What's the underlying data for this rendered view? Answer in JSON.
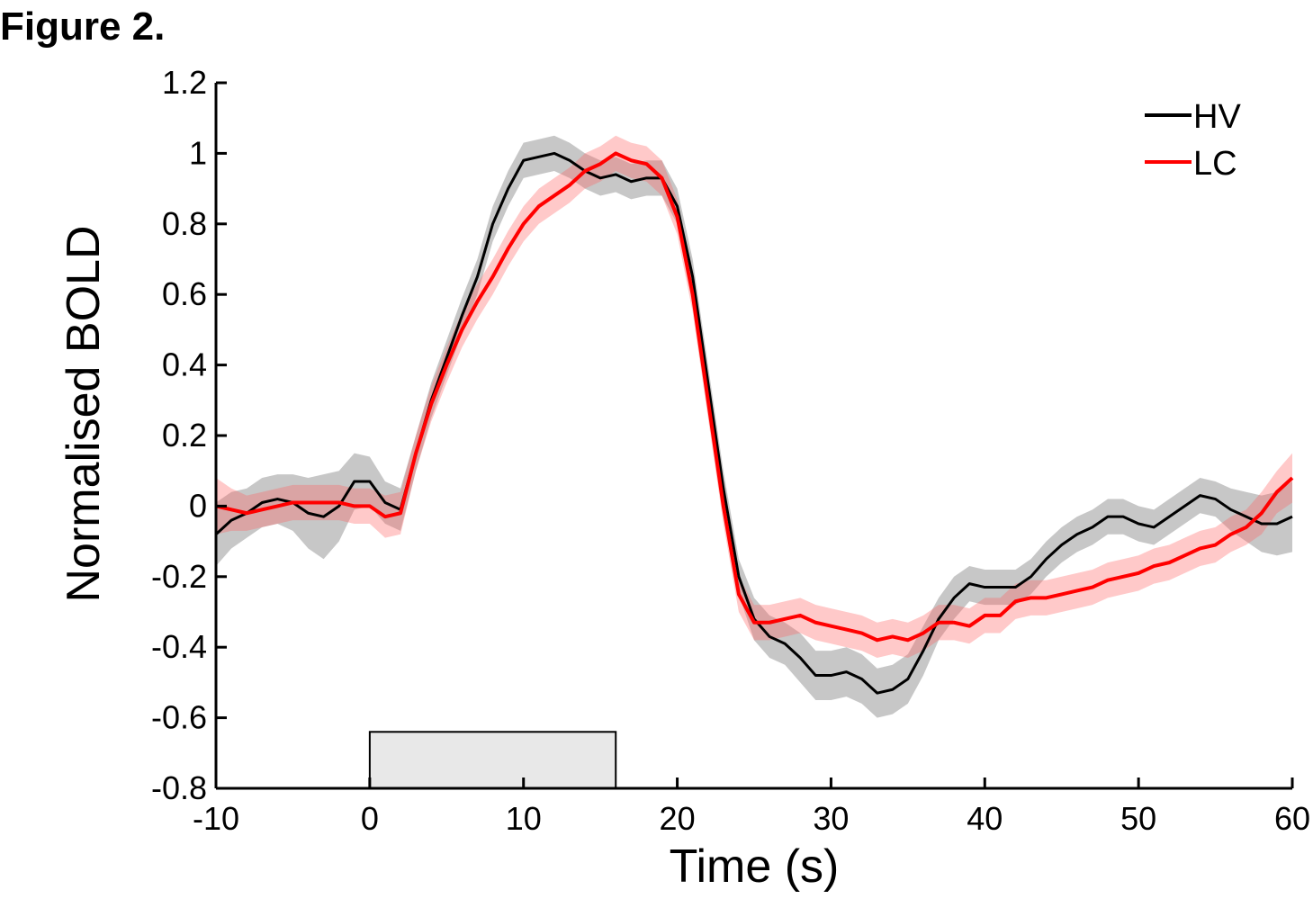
{
  "chart_data": {
    "type": "line",
    "figure_label": "Figure 2.",
    "xlabel": "Time (s)",
    "ylabel": "Normalised BOLD",
    "x": [
      -10,
      -9,
      -8,
      -7,
      -6,
      -5,
      -4,
      -3,
      -2,
      -1,
      0,
      1,
      2,
      3,
      4,
      5,
      6,
      7,
      8,
      9,
      10,
      11,
      12,
      13,
      14,
      15,
      16,
      17,
      18,
      19,
      20,
      21,
      22,
      23,
      24,
      25,
      26,
      27,
      28,
      29,
      30,
      31,
      32,
      33,
      34,
      35,
      36,
      37,
      38,
      39,
      40,
      41,
      42,
      43,
      44,
      45,
      46,
      47,
      48,
      49,
      50,
      51,
      52,
      53,
      54,
      55,
      56,
      57,
      58,
      59,
      60
    ],
    "series": [
      {
        "name": "HV",
        "color": "#000000",
        "band_color": "rgba(130,130,130,0.45)",
        "values": [
          -0.08,
          -0.04,
          -0.02,
          0.01,
          0.02,
          0.01,
          -0.02,
          -0.03,
          0.0,
          0.07,
          0.07,
          0.01,
          -0.01,
          0.15,
          0.3,
          0.42,
          0.54,
          0.65,
          0.8,
          0.9,
          0.98,
          0.99,
          1.0,
          0.98,
          0.95,
          0.93,
          0.94,
          0.92,
          0.93,
          0.93,
          0.85,
          0.65,
          0.35,
          0.05,
          -0.2,
          -0.32,
          -0.37,
          -0.39,
          -0.43,
          -0.48,
          -0.48,
          -0.47,
          -0.49,
          -0.53,
          -0.52,
          -0.49,
          -0.41,
          -0.32,
          -0.26,
          -0.22,
          -0.23,
          -0.23,
          -0.23,
          -0.2,
          -0.15,
          -0.11,
          -0.08,
          -0.06,
          -0.03,
          -0.03,
          -0.05,
          -0.06,
          -0.03,
          0.0,
          0.03,
          0.02,
          -0.01,
          -0.03,
          -0.05,
          -0.05,
          -0.03
        ],
        "error": [
          0.09,
          0.08,
          0.07,
          0.07,
          0.07,
          0.08,
          0.1,
          0.12,
          0.1,
          0.08,
          0.07,
          0.06,
          0.06,
          0.05,
          0.05,
          0.05,
          0.05,
          0.05,
          0.05,
          0.05,
          0.05,
          0.05,
          0.05,
          0.05,
          0.05,
          0.05,
          0.05,
          0.05,
          0.05,
          0.05,
          0.05,
          0.05,
          0.05,
          0.05,
          0.05,
          0.06,
          0.06,
          0.06,
          0.07,
          0.07,
          0.07,
          0.07,
          0.07,
          0.07,
          0.07,
          0.07,
          0.07,
          0.06,
          0.06,
          0.05,
          0.05,
          0.05,
          0.05,
          0.05,
          0.05,
          0.05,
          0.05,
          0.05,
          0.05,
          0.05,
          0.05,
          0.05,
          0.05,
          0.05,
          0.05,
          0.05,
          0.06,
          0.07,
          0.08,
          0.09,
          0.1
        ]
      },
      {
        "name": "LC",
        "color": "#ff0000",
        "band_color": "rgba(255,100,100,0.35)",
        "values": [
          0.0,
          -0.01,
          -0.02,
          -0.01,
          0.0,
          0.01,
          0.01,
          0.01,
          0.01,
          0.0,
          0.0,
          -0.03,
          -0.02,
          0.15,
          0.29,
          0.4,
          0.5,
          0.58,
          0.65,
          0.73,
          0.8,
          0.85,
          0.88,
          0.91,
          0.95,
          0.97,
          1.0,
          0.98,
          0.97,
          0.93,
          0.82,
          0.6,
          0.3,
          0.0,
          -0.25,
          -0.33,
          -0.33,
          -0.32,
          -0.31,
          -0.33,
          -0.34,
          -0.35,
          -0.36,
          -0.38,
          -0.37,
          -0.38,
          -0.36,
          -0.33,
          -0.33,
          -0.34,
          -0.31,
          -0.31,
          -0.27,
          -0.26,
          -0.26,
          -0.25,
          -0.24,
          -0.23,
          -0.21,
          -0.2,
          -0.19,
          -0.17,
          -0.16,
          -0.14,
          -0.12,
          -0.11,
          -0.08,
          -0.06,
          -0.02,
          0.04,
          0.08
        ],
        "error": [
          0.08,
          0.06,
          0.05,
          0.05,
          0.05,
          0.05,
          0.05,
          0.05,
          0.05,
          0.05,
          0.05,
          0.06,
          0.06,
          0.05,
          0.05,
          0.05,
          0.05,
          0.05,
          0.05,
          0.05,
          0.05,
          0.05,
          0.05,
          0.05,
          0.05,
          0.05,
          0.05,
          0.05,
          0.05,
          0.05,
          0.05,
          0.05,
          0.05,
          0.05,
          0.05,
          0.05,
          0.05,
          0.05,
          0.05,
          0.05,
          0.05,
          0.05,
          0.05,
          0.05,
          0.05,
          0.05,
          0.05,
          0.05,
          0.05,
          0.05,
          0.05,
          0.05,
          0.05,
          0.05,
          0.05,
          0.05,
          0.05,
          0.05,
          0.05,
          0.05,
          0.05,
          0.05,
          0.05,
          0.05,
          0.05,
          0.05,
          0.05,
          0.05,
          0.06,
          0.06,
          0.07
        ]
      }
    ],
    "stimulus": {
      "x": [
        0,
        16
      ],
      "y": [
        -0.8,
        -0.64
      ],
      "color": "#e8e8e8"
    },
    "xlim": [
      -10,
      60
    ],
    "ylim": [
      -0.8,
      1.2
    ],
    "xticks": [
      -10,
      0,
      10,
      20,
      30,
      40,
      50,
      60
    ],
    "yticks": [
      -0.8,
      -0.6,
      -0.4,
      -0.2,
      0,
      0.2,
      0.4,
      0.6,
      0.8,
      1,
      1.2
    ],
    "legend": "upper-right"
  }
}
